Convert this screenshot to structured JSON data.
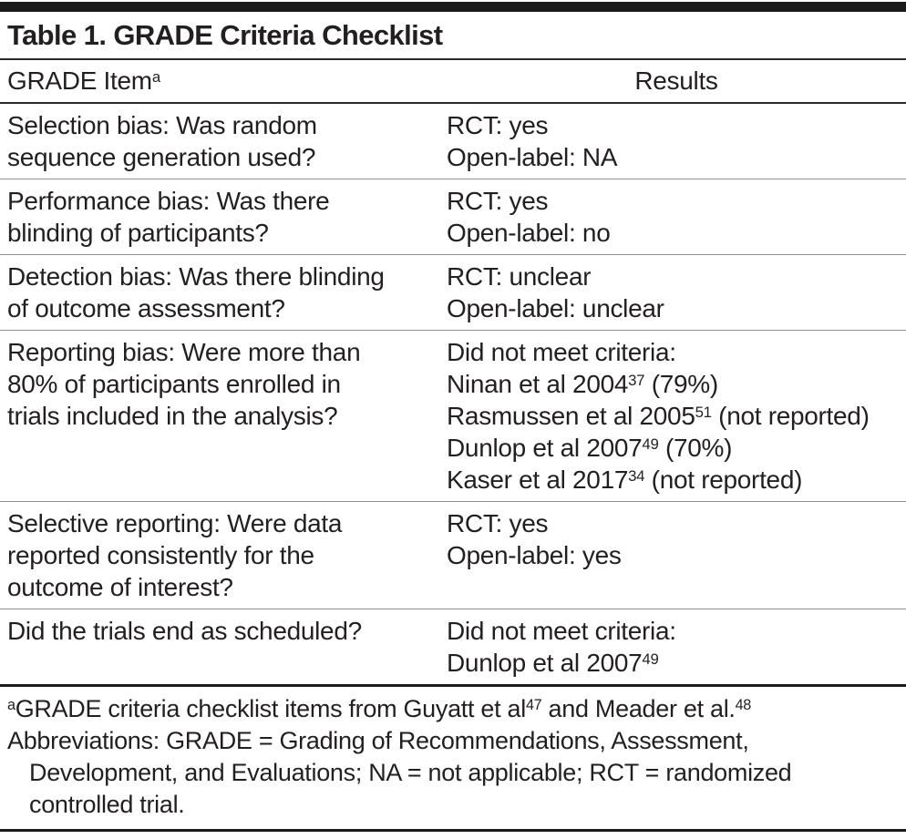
{
  "colors": {
    "background": "#ffffff",
    "text": "#231f20",
    "rule_black": "#1a1a1a",
    "divider_gray": "#8e8e8e"
  },
  "table": {
    "title": "Table 1. GRADE Criteria Checklist",
    "header": {
      "item_label": "GRADE Item",
      "item_sup": "a",
      "results_label": "Results"
    },
    "rows": [
      {
        "item_lines": [
          "Selection bias: Was random",
          "sequence generation used?"
        ],
        "result_lines": [
          [
            {
              "text": "RCT: yes"
            }
          ],
          [
            {
              "text": "Open-label: NA"
            }
          ]
        ]
      },
      {
        "item_lines": [
          "Performance bias: Was there",
          "blinding of participants?"
        ],
        "result_lines": [
          [
            {
              "text": "RCT: yes"
            }
          ],
          [
            {
              "text": "Open-label: no"
            }
          ]
        ]
      },
      {
        "item_lines": [
          "Detection bias: Was there blinding",
          "of outcome assessment?"
        ],
        "result_lines": [
          [
            {
              "text": "RCT: unclear"
            }
          ],
          [
            {
              "text": "Open-label: unclear"
            }
          ]
        ]
      },
      {
        "item_lines": [
          "Reporting bias: Were more than",
          "80% of participants enrolled in",
          "trials included in the analysis?"
        ],
        "result_lines": [
          [
            {
              "text": "Did not meet criteria:"
            }
          ],
          [
            {
              "text": "Ninan et al 2004"
            },
            {
              "sup": "37"
            },
            {
              "text": " (79%)"
            }
          ],
          [
            {
              "text": "Rasmussen et al 2005"
            },
            {
              "sup": "51"
            },
            {
              "text": " (not reported)"
            }
          ],
          [
            {
              "text": "Dunlop et al 2007"
            },
            {
              "sup": "49"
            },
            {
              "text": " (70%)"
            }
          ],
          [
            {
              "text": "Kaser et al 2017"
            },
            {
              "sup": "34"
            },
            {
              "text": " (not reported)"
            }
          ]
        ]
      },
      {
        "item_lines": [
          "Selective reporting: Were data",
          "reported consistently for the",
          "outcome of interest?"
        ],
        "result_lines": [
          [
            {
              "text": "RCT: yes"
            }
          ],
          [
            {
              "text": "Open-label: yes"
            }
          ]
        ]
      },
      {
        "item_lines": [
          "Did the trials end as scheduled?"
        ],
        "result_lines": [
          [
            {
              "text": "Did not meet criteria:"
            }
          ],
          [
            {
              "text": "Dunlop et al 2007"
            },
            {
              "sup": "49"
            }
          ]
        ]
      }
    ],
    "footnotes": {
      "a_marker": "a",
      "a_part1": "GRADE criteria checklist items from Guyatt et al",
      "a_sup1": "47",
      "a_part2": " and Meader et al.",
      "a_sup2": "48",
      "abbr_lines": [
        "Abbreviations: GRADE = Grading of Recommendations, Assessment,",
        "Development, and Evaluations; NA = not applicable; RCT = randomized",
        "controlled trial."
      ]
    }
  }
}
